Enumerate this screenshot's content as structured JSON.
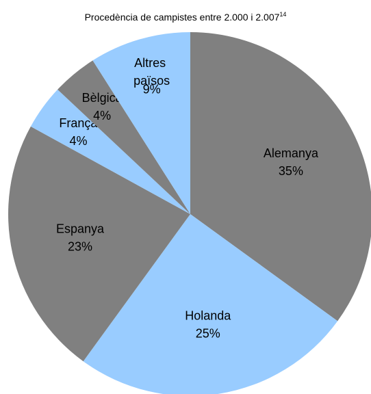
{
  "chart_data": {
    "type": "pie",
    "title": "Procedència de campistes entre 2.000 i 2.007",
    "title_superscript": "14",
    "categories": [
      "Alemanya",
      "Holanda",
      "Espanya",
      "França",
      "Bèlgica",
      "Altres països"
    ],
    "values": [
      35,
      25,
      23,
      4,
      4,
      9
    ],
    "value_labels": [
      "35%",
      "25%",
      "23%",
      "4%",
      "4%",
      "9%"
    ],
    "colors": [
      "#808080",
      "#99ccff",
      "#808080",
      "#99ccff",
      "#808080",
      "#99ccff"
    ]
  }
}
